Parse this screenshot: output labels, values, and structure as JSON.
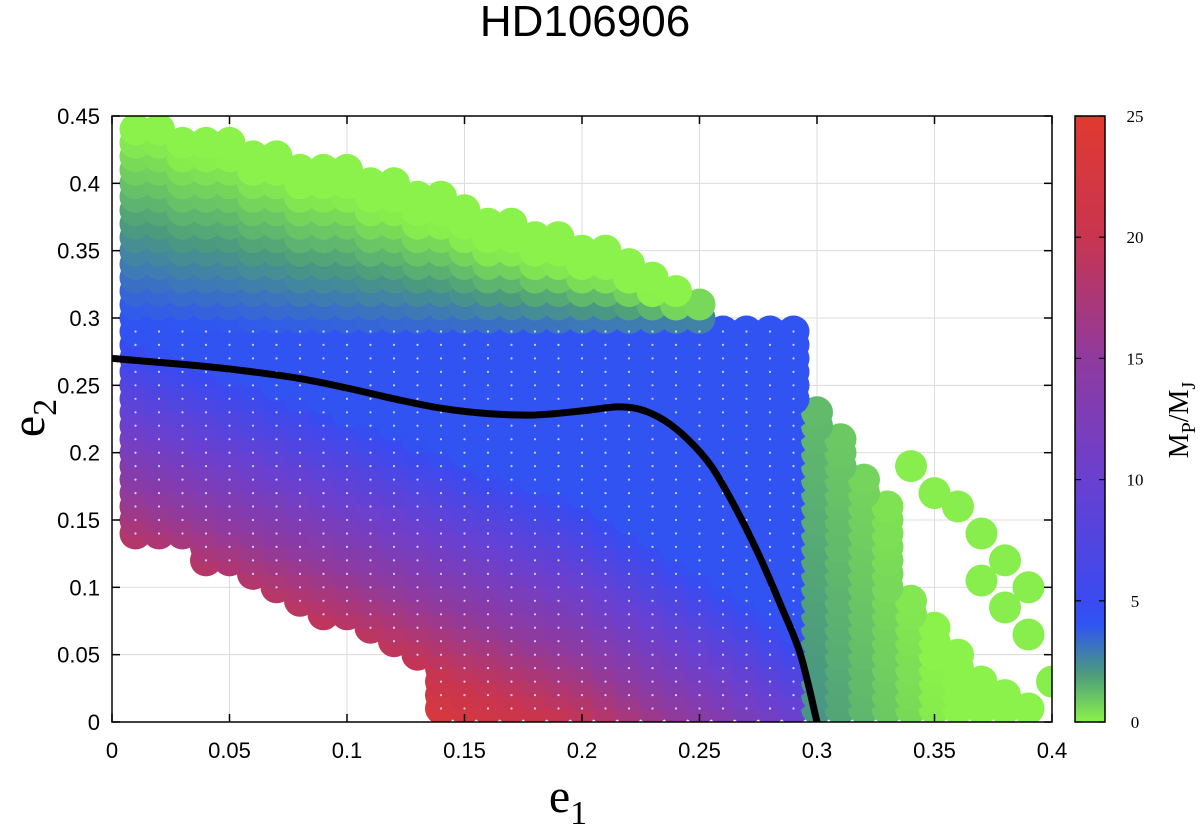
{
  "chart_data": {
    "type": "scatter",
    "title": "HD106906",
    "xlabel": {
      "main": "e",
      "sub": "1"
    },
    "ylabel": {
      "main": "e",
      "sub": "2"
    },
    "xlim": [
      0,
      0.4
    ],
    "ylim": [
      0,
      0.45
    ],
    "xticks": [
      "0",
      "0.05",
      "0.1",
      "0.15",
      "0.2",
      "0.25",
      "0.3",
      "0.35",
      "0.4"
    ],
    "yticks": [
      "0",
      "0.05",
      "0.1",
      "0.15",
      "0.2",
      "0.25",
      "0.3",
      "0.35",
      "0.4",
      "0.45"
    ],
    "grid": true,
    "grid_step": {
      "e1": 0.01,
      "e2": 0.01
    },
    "colorbar": {
      "label": {
        "main": "M",
        "sub1": "P",
        "mid": "/M",
        "sub2": "J"
      },
      "range": [
        0,
        25
      ],
      "ticks": [
        "0",
        "5",
        "10",
        "15",
        "20",
        "25"
      ],
      "colors": [
        {
          "value": 0,
          "color": "#8af24a"
        },
        {
          "value": 2,
          "color": "#4b9a7e"
        },
        {
          "value": 4,
          "color": "#2f55f2"
        },
        {
          "value": 5,
          "color": "#3a4af0"
        },
        {
          "value": 10,
          "color": "#6a40d0"
        },
        {
          "value": 15,
          "color": "#8f3a9e"
        },
        {
          "value": 20,
          "color": "#c83550"
        },
        {
          "value": 25,
          "color": "#e03a30"
        }
      ]
    },
    "regions": {
      "upper_band_e2_min": 0.3,
      "upper_band_top_e2_by_e1": [
        [
          0.01,
          0.44
        ],
        [
          0.02,
          0.44
        ],
        [
          0.03,
          0.43
        ],
        [
          0.04,
          0.43
        ],
        [
          0.05,
          0.43
        ],
        [
          0.06,
          0.42
        ],
        [
          0.07,
          0.42
        ],
        [
          0.08,
          0.41
        ],
        [
          0.09,
          0.41
        ],
        [
          0.1,
          0.41
        ],
        [
          0.11,
          0.4
        ],
        [
          0.12,
          0.4
        ],
        [
          0.13,
          0.39
        ],
        [
          0.14,
          0.39
        ],
        [
          0.15,
          0.38
        ],
        [
          0.16,
          0.37
        ],
        [
          0.17,
          0.37
        ],
        [
          0.18,
          0.36
        ],
        [
          0.19,
          0.36
        ],
        [
          0.2,
          0.35
        ],
        [
          0.21,
          0.35
        ],
        [
          0.22,
          0.34
        ],
        [
          0.23,
          0.33
        ],
        [
          0.24,
          0.32
        ],
        [
          0.25,
          0.31
        ]
      ],
      "main_e1_max": 0.29,
      "main_e2_max": 0.29,
      "main_lower_e2_by_e1": [
        [
          0.01,
          0.14
        ],
        [
          0.02,
          0.14
        ],
        [
          0.03,
          0.14
        ],
        [
          0.04,
          0.12
        ],
        [
          0.05,
          0.12
        ],
        [
          0.06,
          0.11
        ],
        [
          0.07,
          0.1
        ],
        [
          0.08,
          0.09
        ],
        [
          0.09,
          0.08
        ],
        [
          0.1,
          0.08
        ],
        [
          0.11,
          0.07
        ],
        [
          0.12,
          0.06
        ],
        [
          0.13,
          0.05
        ],
        [
          0.14,
          0.01
        ],
        [
          0.15,
          0.01
        ],
        [
          0.16,
          0.01
        ],
        [
          0.17,
          0.01
        ],
        [
          0.18,
          0.01
        ],
        [
          0.19,
          0.01
        ],
        [
          0.2,
          0.01
        ],
        [
          0.21,
          0.01
        ],
        [
          0.22,
          0.01
        ],
        [
          0.23,
          0.01
        ],
        [
          0.24,
          0.01
        ],
        [
          0.25,
          0.01
        ],
        [
          0.26,
          0.01
        ],
        [
          0.27,
          0.01
        ],
        [
          0.28,
          0.01
        ],
        [
          0.29,
          0.01
        ]
      ],
      "right_wedge": {
        "e1_min": 0.3,
        "e1_max": 0.39,
        "top_e2_at_e1_min": 0.23,
        "top_slope": -2.25,
        "e2_min": 0.01,
        "sparse": [
          [
            0.34,
            0.19
          ],
          [
            0.35,
            0.17
          ],
          [
            0.36,
            0.16
          ],
          [
            0.37,
            0.14
          ],
          [
            0.38,
            0.12
          ],
          [
            0.39,
            0.1
          ],
          [
            0.4,
            0.03
          ],
          [
            0.39,
            0.065
          ],
          [
            0.38,
            0.085
          ],
          [
            0.37,
            0.105
          ]
        ]
      }
    },
    "boundary_curve": {
      "color": "#000000",
      "points": [
        [
          0,
          0.27
        ],
        [
          0.02,
          0.267
        ],
        [
          0.04,
          0.264
        ],
        [
          0.06,
          0.26
        ],
        [
          0.08,
          0.255
        ],
        [
          0.1,
          0.248
        ],
        [
          0.12,
          0.24
        ],
        [
          0.14,
          0.233
        ],
        [
          0.16,
          0.229
        ],
        [
          0.18,
          0.228
        ],
        [
          0.2,
          0.231
        ],
        [
          0.215,
          0.234
        ],
        [
          0.225,
          0.232
        ],
        [
          0.235,
          0.224
        ],
        [
          0.245,
          0.21
        ],
        [
          0.255,
          0.19
        ],
        [
          0.265,
          0.16
        ],
        [
          0.275,
          0.125
        ],
        [
          0.285,
          0.085
        ],
        [
          0.293,
          0.05
        ],
        [
          0.3,
          0.0
        ]
      ]
    }
  }
}
